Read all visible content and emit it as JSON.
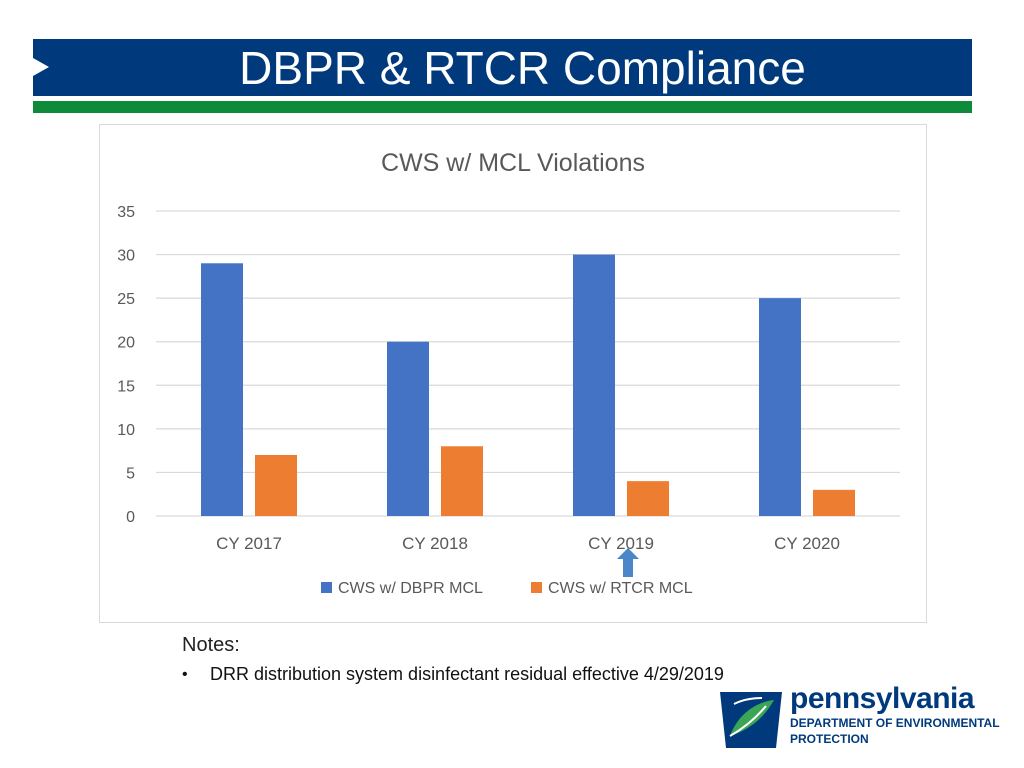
{
  "slide": {
    "title": "DBPR & RTCR Compliance"
  },
  "chart_data": {
    "type": "bar",
    "title": "CWS w/ MCL Violations",
    "categories": [
      "CY 2017",
      "CY 2018",
      "CY 2019",
      "CY 2020"
    ],
    "series": [
      {
        "name": "CWS w/ DBPR MCL",
        "color": "#4472c4",
        "values": [
          29,
          20,
          30,
          25
        ]
      },
      {
        "name": "CWS w/ RTCR MCL",
        "color": "#ed7d31",
        "values": [
          7,
          8,
          4,
          3
        ]
      }
    ],
    "ylim": [
      0,
      35
    ],
    "yticks": [
      "0",
      "5",
      "10",
      "15",
      "20",
      "25",
      "30",
      "35"
    ],
    "grid": true,
    "legend": "bottom",
    "annotation": {
      "type": "arrow",
      "category": "CY 2019",
      "color": "#4a86c8"
    }
  },
  "notes": {
    "title": "Notes:",
    "items": [
      "DRR distribution system disinfectant residual effective 4/29/2019"
    ]
  },
  "logo": {
    "name": "pennsylvania",
    "line1": "DEPARTMENT OF ENVIRONMENTAL",
    "line2": "PROTECTION"
  }
}
